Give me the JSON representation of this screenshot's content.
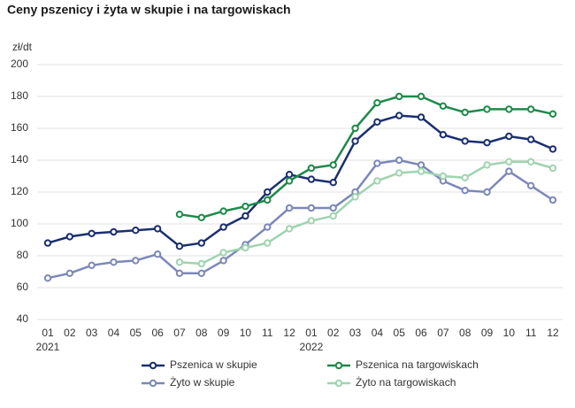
{
  "chart_data": {
    "type": "line",
    "title": "Ceny pszenicy i żyta w skupie i na targowiskach",
    "y_label": "zł/dt",
    "categories": [
      "01",
      "02",
      "03",
      "04",
      "05",
      "06",
      "07",
      "08",
      "09",
      "10",
      "11",
      "12",
      "01",
      "02",
      "03",
      "04",
      "05",
      "06",
      "07",
      "08",
      "09",
      "10",
      "11",
      "12"
    ],
    "years": [
      "2021",
      "2022"
    ],
    "ylim": [
      40,
      200
    ],
    "yticks": [
      40,
      60,
      80,
      100,
      120,
      140,
      160,
      180,
      200
    ],
    "grid": true,
    "series": [
      {
        "name": "Pszenica w skupie",
        "color": "#1b2f6e",
        "values": [
          88,
          92,
          94,
          95,
          96,
          97,
          86,
          88,
          98,
          105,
          120,
          131,
          128,
          126,
          152,
          164,
          168,
          167,
          156,
          152,
          151,
          155,
          153,
          147
        ]
      },
      {
        "name": "Pszenica na targowiskach",
        "color": "#1e8a4a",
        "values": [
          null,
          null,
          null,
          null,
          null,
          null,
          106,
          104,
          108,
          111,
          115,
          127,
          135,
          137,
          160,
          176,
          180,
          180,
          174,
          170,
          172,
          172,
          172,
          169
        ]
      },
      {
        "name": "Żyto w skupie",
        "color": "#7b88b8",
        "values": [
          66,
          69,
          74,
          76,
          77,
          81,
          69,
          69,
          77,
          87,
          98,
          110,
          110,
          110,
          120,
          138,
          140,
          137,
          127,
          121,
          120,
          133,
          124,
          115
        ]
      },
      {
        "name": "Żyto na targowiskach",
        "color": "#9fd4b0",
        "values": [
          null,
          null,
          null,
          null,
          null,
          null,
          76,
          75,
          82,
          85,
          88,
          97,
          102,
          105,
          117,
          127,
          132,
          133,
          130,
          129,
          137,
          139,
          139,
          135
        ]
      }
    ]
  }
}
